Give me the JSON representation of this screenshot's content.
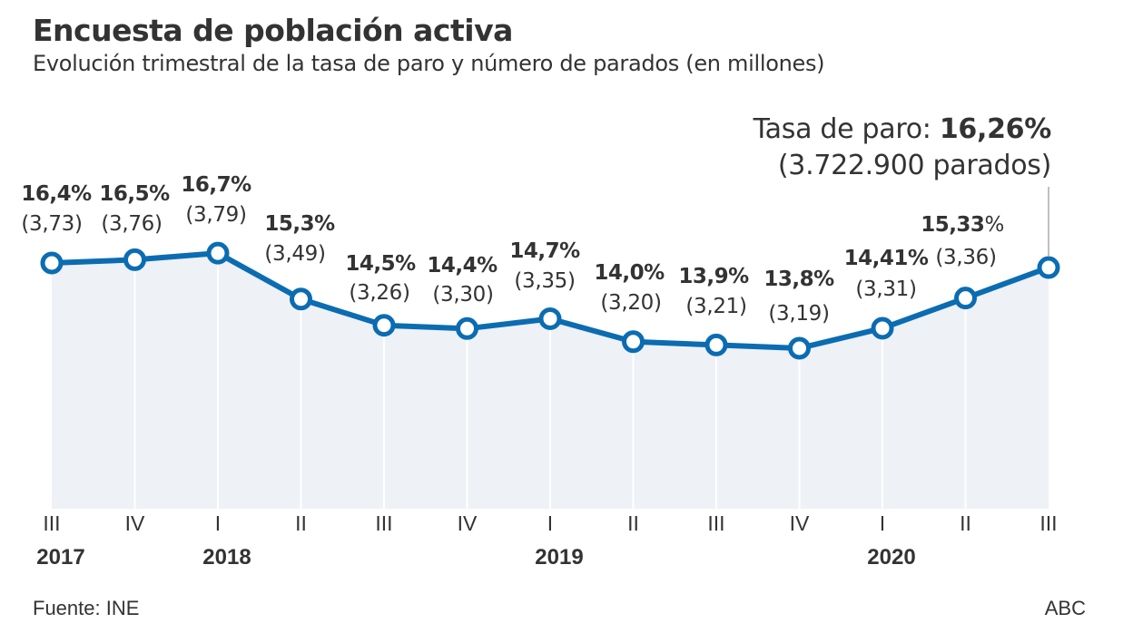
{
  "chart_data": {
    "type": "line",
    "title": "Encuesta de población activa",
    "subtitle": "Evolución trimestral de la tasa de paro y número de parados (en millones)",
    "xlabel": "",
    "ylabel": "",
    "grid": true,
    "area_fill": true,
    "ylim": [
      0,
      17
    ],
    "categories": [
      "III",
      "IV",
      "I",
      "II",
      "III",
      "IV",
      "I",
      "II",
      "III",
      "IV",
      "I",
      "II",
      "III"
    ],
    "years": [
      {
        "label": "2017",
        "index": 0
      },
      {
        "label": "2018",
        "index": 2
      },
      {
        "label": "2019",
        "index": 6
      },
      {
        "label": "2020",
        "index": 10
      }
    ],
    "series": [
      {
        "name": "Tasa de paro (%)",
        "values": [
          16.4,
          16.5,
          16.7,
          15.3,
          14.5,
          14.4,
          14.7,
          14.0,
          13.9,
          13.8,
          14.41,
          15.33,
          16.26
        ],
        "labels": [
          "16,4%",
          "16,5%",
          "16,7%",
          "15,3%",
          "14,5%",
          "14,4%",
          "14,7%",
          "14,0%",
          "13,9%",
          "13,8%",
          "14,41%",
          "15,33%",
          ""
        ],
        "color": "#0b6cb2"
      },
      {
        "name": "Parados (millones)",
        "values": [
          3.73,
          3.76,
          3.79,
          3.49,
          3.26,
          3.3,
          3.35,
          3.2,
          3.21,
          3.19,
          3.31,
          3.36,
          3.7229
        ],
        "labels": [
          "(3,73)",
          "(3,76)",
          "(3,79)",
          "(3,49)",
          "(3,26)",
          "(3,30)",
          "(3,35)",
          "(3,20)",
          "(3,21)",
          "(3,19)",
          "(3,31)",
          "(3,36)",
          ""
        ]
      }
    ],
    "annotation": {
      "prefix": "Tasa de paro: ",
      "value": "16,26%",
      "detail": "(3.722.900 parados)"
    },
    "colors": {
      "line": "#0b6cb2",
      "area": "#eef1f5",
      "gridline": "#ffffff",
      "leader": "#aaaaaa",
      "text": "#333333"
    }
  },
  "footer": {
    "source": "Fuente: INE",
    "brand": "ABC"
  }
}
